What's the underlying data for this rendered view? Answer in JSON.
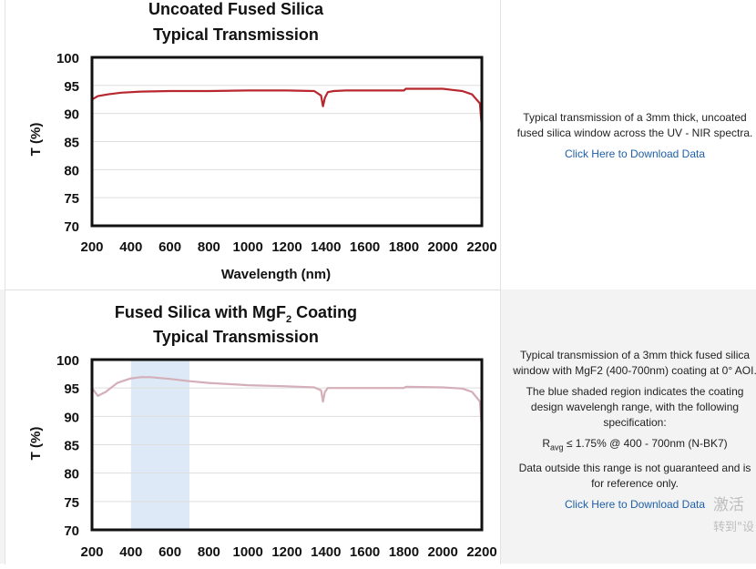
{
  "chart_data": [
    {
      "type": "line",
      "title_line1": "Uncoated Fused Silica",
      "title_line2": "Typical Transmission",
      "xlabel": "Wavelength (nm)",
      "ylabel": "T (%)",
      "xlim": [
        200,
        2200
      ],
      "ylim": [
        70,
        100
      ],
      "x_ticks": [
        "200",
        "400",
        "600",
        "800",
        "1000",
        "1200",
        "1400",
        "1600",
        "1800",
        "2000",
        "2200"
      ],
      "y_ticks": [
        "100",
        "95",
        "90",
        "85",
        "80",
        "75",
        "70"
      ],
      "grid": true,
      "line_color": "#b7272d",
      "series": [
        {
          "x": [
            200,
            230,
            280,
            350,
            450,
            600,
            800,
            1000,
            1200,
            1340,
            1375,
            1385,
            1395,
            1410,
            1440,
            1500,
            1700,
            1800,
            1810,
            1900,
            2000,
            2050,
            2100,
            2150,
            2190,
            2200
          ],
          "y": [
            92.5,
            93.1,
            93.4,
            93.7,
            93.9,
            94.0,
            94.0,
            94.1,
            94.1,
            94.0,
            93.2,
            91.3,
            92.8,
            93.8,
            94.0,
            94.1,
            94.1,
            94.1,
            94.4,
            94.4,
            94.4,
            94.2,
            94.0,
            93.4,
            91.8,
            87.5
          ]
        }
      ]
    },
    {
      "type": "line",
      "title_line1": "Fused Silica with MgF",
      "title_sub": "2",
      "title_line1_end": " Coating",
      "title_line2": "Typical Transmission",
      "xlabel": "",
      "ylabel": "T (%)",
      "xlim": [
        200,
        2200
      ],
      "ylim": [
        70,
        100
      ],
      "x_ticks": [
        "200",
        "400",
        "600",
        "800",
        "1000",
        "1200",
        "1400",
        "1600",
        "1800",
        "2000",
        "2200"
      ],
      "y_ticks": [
        "100",
        "95",
        "90",
        "85",
        "80",
        "75",
        "70"
      ],
      "grid": true,
      "line_color": "#d4aeb8",
      "shaded_region": {
        "x": [
          400,
          700
        ],
        "color": "#dde9f6"
      },
      "series": [
        {
          "x": [
            200,
            230,
            270,
            330,
            400,
            450,
            500,
            600,
            700,
            800,
            1000,
            1200,
            1340,
            1375,
            1385,
            1395,
            1410,
            1440,
            1600,
            1800,
            1810,
            2000,
            2100,
            2150,
            2190,
            2200
          ],
          "y": [
            95.0,
            93.6,
            94.3,
            95.9,
            96.7,
            96.9,
            96.9,
            96.6,
            96.2,
            95.9,
            95.5,
            95.3,
            95.1,
            94.6,
            92.6,
            94.3,
            95.0,
            95.0,
            95.0,
            95.0,
            95.2,
            95.1,
            94.9,
            94.3,
            92.6,
            88.0
          ]
        }
      ]
    }
  ],
  "panels": [
    {
      "description": [
        "Typical transmission of a 3mm thick, uncoated fused silica window across the UV - NIR spectra."
      ],
      "link": "Click Here to Download Data"
    },
    {
      "description": [
        "Typical transmission of a 3mm thick fused silica window with MgF2 (400-700nm) coating at 0° AOI.",
        "The blue shaded region indicates the coating design wavelengh range, with the following specification:"
      ],
      "spec_r": "R",
      "spec_sub": "avg",
      "spec_rest": " ≤ 1.75% @ 400 - 700nm (N-BK7)",
      "note": "Data outside this range is not guaranteed and is for reference only.",
      "link": "Click Here to Download Data"
    }
  ],
  "watermark": {
    "line1": "激活",
    "line2": "转到\"设"
  }
}
